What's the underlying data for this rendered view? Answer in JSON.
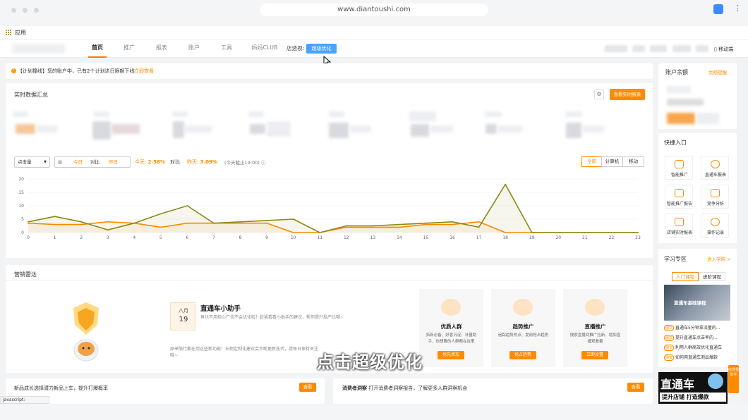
{
  "browser": {
    "url": "www.diantoushi.com",
    "bookmark_apps": "应用",
    "status_text": "javascript:"
  },
  "nav": {
    "items": [
      "首页",
      "推广",
      "报表",
      "账户",
      "工具",
      "妈妈CLUB"
    ],
    "active_index": 0,
    "shop_label": "店透视:",
    "shop_button": "超级优化",
    "mobile_link": "移动端"
  },
  "notice": {
    "tag": "【计划撞线】",
    "text": "您的账户中，已有2个计划达日限额下线",
    "link": "立即查看"
  },
  "realtime": {
    "title": "实时数据汇总",
    "view_button": "查看实时报表",
    "metric_select": "点击量",
    "compare": [
      "今日",
      "对比",
      "昨日"
    ],
    "today_label": "今天:",
    "today_value": "2.58%",
    "compare_label": "对比",
    "yesterday_label": "昨天:",
    "yesterday_value": "3.09%",
    "cutoff": "(今天截止19:00)",
    "device_tabs": [
      "全部",
      "计算机",
      "移动"
    ],
    "device_active": 0
  },
  "chart_data": {
    "type": "line",
    "x": [
      0,
      1,
      2,
      3,
      4,
      5,
      6,
      7,
      8,
      9,
      10,
      11,
      12,
      13,
      14,
      15,
      16,
      17,
      18,
      19,
      20,
      21,
      22,
      23
    ],
    "ylim": [
      0,
      20
    ],
    "yticks": [
      0,
      5,
      10,
      15,
      20
    ],
    "series": [
      {
        "values": [
          3.5,
          3,
          3,
          4,
          3.5,
          2,
          3.5,
          3.5,
          3.5,
          3.5,
          0,
          0,
          2,
          2,
          2,
          3,
          3,
          4,
          0,
          0,
          0,
          0,
          0,
          0
        ],
        "color": "#ff8a00"
      },
      {
        "values": [
          4,
          6,
          4,
          1,
          3.5,
          7,
          10,
          3.5,
          4,
          4.5,
          5,
          0,
          2.5,
          2.5,
          3,
          3.5,
          4,
          2,
          18,
          0,
          0,
          0,
          0,
          0
        ],
        "color": "#8a8a1a"
      }
    ]
  },
  "account": {
    "title": "账户余额",
    "link": "余额提醒"
  },
  "quick": {
    "title": "快捷入口",
    "items": [
      {
        "label": "智能推广",
        "icon": "smart-promo-icon"
      },
      {
        "label": "直通车报表",
        "icon": "report-chart-icon"
      },
      {
        "label": "智能推广报告",
        "icon": "smart-report-icon"
      },
      {
        "label": "竞争分析",
        "icon": "competition-icon"
      },
      {
        "label": "店铺实时报表",
        "icon": "realtime-report-icon"
      },
      {
        "label": "操作记录",
        "icon": "history-icon"
      }
    ]
  },
  "learn": {
    "title": "学习专区",
    "link": "进入学院 >",
    "tabs": [
      "入门课程",
      "进阶课程"
    ],
    "banner_text": "直通车基础课程",
    "items": [
      {
        "tag": "图文",
        "text": "直通车5分钟拿流量的..."
      },
      {
        "tag": "图文",
        "text": "提升直通车点击率的..."
      },
      {
        "tag": "图文",
        "text": "利用人群高效优化直通车"
      },
      {
        "tag": "图文",
        "text": "如何用直通车测出爆款"
      }
    ],
    "promo_line1": "直通车",
    "promo_line2": "提升店铺",
    "promo_line3": "打造爆款",
    "side_badge": "店透视助手"
  },
  "marketing": {
    "title": "营销雷达",
    "assistant_title": "直通车小助手",
    "date_month": "八月",
    "date_day": "19",
    "assistant_text": "再也不用担心广告不会优化啦！赶紧看看小助手的建议，帮你提升投产比哦~",
    "assistant_text2": "原来限行都在用这些新功能！右侧定制化建议会不断更新迭代，请每日保持关注哦~",
    "features": [
      {
        "title": "优质人群",
        "desc": "拓新必备、好客沉淀、补量助手、你想要的人群都在这里",
        "button": "抢先添加",
        "icon": "crowd-icon"
      },
      {
        "title": "趋势推广",
        "desc": "追踪趋势热点、提前抢占趋势",
        "button": "抢占趋势",
        "icon": "trend-icon"
      },
      {
        "title": "直播推广",
        "desc": "搜索直播间推广拉新、增加直播观看量",
        "button": "立即设置",
        "icon": "live-icon"
      }
    ]
  },
  "bottom_cards": [
    {
      "title": "新品成长",
      "text": "选择潜力新品上车，提升打爆概率",
      "button": "查看"
    },
    {
      "title": "消费者洞察",
      "text": "打开消费者洞察报告，了解更多人群洞察机会",
      "button": "查看"
    }
  ],
  "subtitle": "点击超级优化"
}
